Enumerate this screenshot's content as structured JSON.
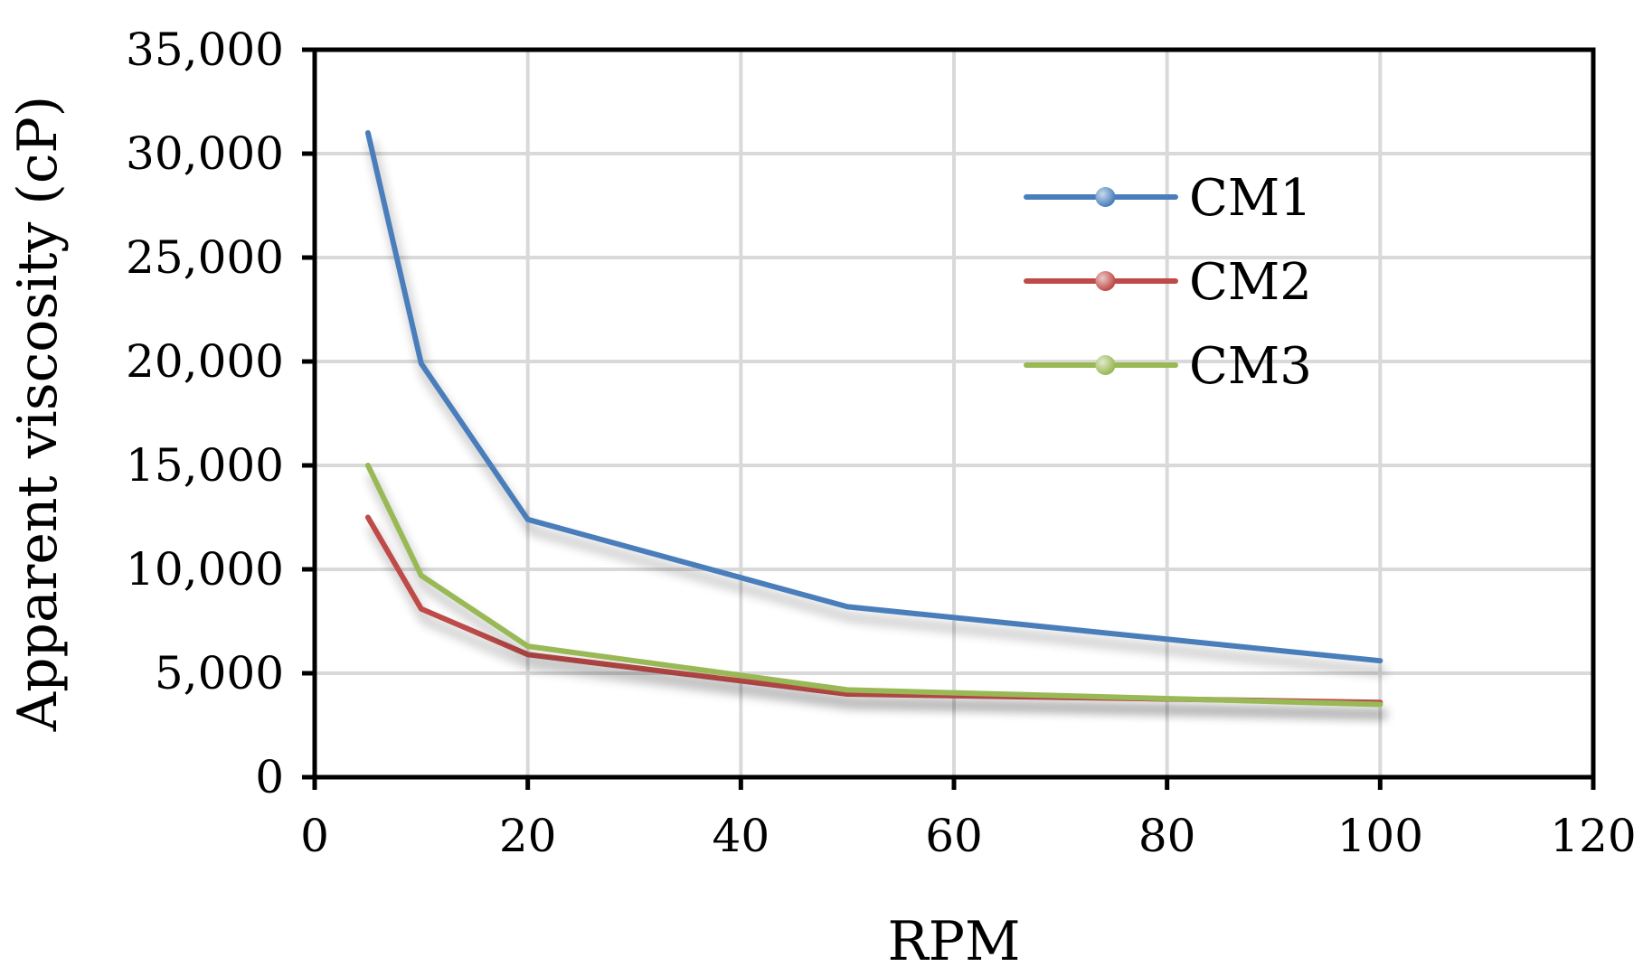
{
  "chart_data": {
    "type": "line",
    "title": "",
    "xlabel": "RPM",
    "ylabel": "Apparent viscosity (cP)",
    "xlim": [
      0,
      120
    ],
    "ylim": [
      0,
      35000
    ],
    "x_ticks": [
      0,
      20,
      40,
      60,
      80,
      100,
      120
    ],
    "y_ticks": [
      0,
      5000,
      10000,
      15000,
      20000,
      25000,
      30000,
      35000
    ],
    "x_tick_labels": [
      "0",
      "20",
      "40",
      "60",
      "80",
      "100",
      "120"
    ],
    "y_tick_labels": [
      "0",
      "5,000",
      "10,000",
      "15,000",
      "20,000",
      "25,000",
      "30,000",
      "35,000"
    ],
    "grid": true,
    "legend_position": "top-right",
    "x": [
      5,
      10,
      20,
      50,
      100
    ],
    "series": [
      {
        "name": "CM1",
        "color": "#4a7ebb",
        "values": [
          31000,
          19900,
          12400,
          8200,
          5600
        ]
      },
      {
        "name": "CM2",
        "color": "#be4b48",
        "values": [
          12500,
          8100,
          5900,
          4000,
          3600
        ]
      },
      {
        "name": "CM3",
        "color": "#98b954",
        "values": [
          15000,
          9700,
          6300,
          4200,
          3500
        ]
      }
    ]
  }
}
